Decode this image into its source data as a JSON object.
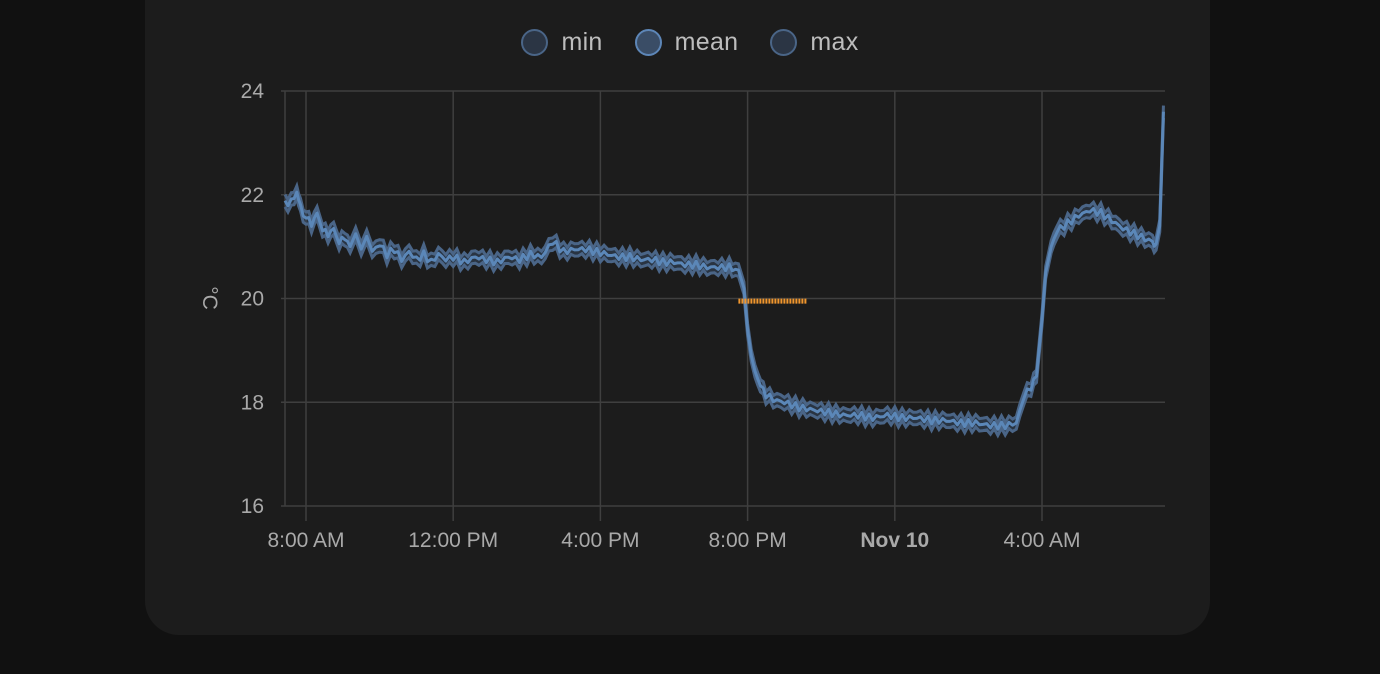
{
  "legend": {
    "items": [
      {
        "label": "min",
        "fill": "#2b3544",
        "stroke": "#4a6587"
      },
      {
        "label": "mean",
        "fill": "#3a4d66",
        "stroke": "#5d86b7"
      },
      {
        "label": "max",
        "fill": "#2b3544",
        "stroke": "#4a6587"
      }
    ]
  },
  "colors": {
    "page_bg": "#111111",
    "card_bg": "#1c1c1c",
    "grid": "#3f3f3f",
    "series_line": "#5b87b8",
    "band": "#3a5270",
    "orange": "#f0962e",
    "text": "#a9a9a9"
  },
  "chart_data": {
    "type": "line",
    "title": "",
    "xlabel": "",
    "ylabel": "°C",
    "ylim": [
      16,
      24
    ],
    "y_ticks": [
      16,
      18,
      20,
      22,
      24
    ],
    "x_unit": "hours since 8:00 AM (Nov 9)",
    "xlim": [
      -0.58,
      23.3
    ],
    "x_ticks": [
      {
        "at": 0,
        "label": "8:00 AM",
        "bold": false
      },
      {
        "at": 4,
        "label": "12:00 PM",
        "bold": false
      },
      {
        "at": 8,
        "label": "4:00 PM",
        "bold": false
      },
      {
        "at": 12,
        "label": "8:00 PM",
        "bold": false
      },
      {
        "at": 16,
        "label": "Nov 10",
        "bold": true
      },
      {
        "at": 20,
        "label": "4:00 AM",
        "bold": false
      }
    ],
    "grid": true,
    "legend_position": "top",
    "series": [
      {
        "name": "mean",
        "x": [
          -0.58,
          -0.4,
          -0.25,
          -0.15,
          0.0,
          0.15,
          0.3,
          0.45,
          0.6,
          0.75,
          0.9,
          1.05,
          1.2,
          1.35,
          1.5,
          1.65,
          1.8,
          2.0,
          2.2,
          2.4,
          2.6,
          2.8,
          3.0,
          3.2,
          3.4,
          3.6,
          3.8,
          4.0,
          4.3,
          4.6,
          4.9,
          5.2,
          5.5,
          5.8,
          6.1,
          6.4,
          6.7,
          7.0,
          7.3,
          7.6,
          7.9,
          8.2,
          8.5,
          8.8,
          9.1,
          9.4,
          9.7,
          10.0,
          10.3,
          10.6,
          10.9,
          11.2,
          11.5,
          11.75,
          11.9,
          12.0,
          12.1,
          12.2,
          12.35,
          12.5,
          12.7,
          13.0,
          13.4,
          13.8,
          14.2,
          14.6,
          15.0,
          15.4,
          15.8,
          16.2,
          16.6,
          17.0,
          17.4,
          17.8,
          18.2,
          18.6,
          19.0,
          19.3,
          19.5,
          19.7,
          19.85,
          20.0,
          20.1,
          20.25,
          20.4,
          20.6,
          20.8,
          21.0,
          21.3,
          21.6,
          21.9,
          22.2,
          22.5,
          22.8,
          23.0,
          23.1,
          23.2,
          23.3
        ],
        "values": [
          21.85,
          21.85,
          22.05,
          21.75,
          21.55,
          21.45,
          21.65,
          21.3,
          21.25,
          21.35,
          21.05,
          21.2,
          21.0,
          21.25,
          20.95,
          21.2,
          20.9,
          21.05,
          20.85,
          20.95,
          20.75,
          20.9,
          20.75,
          20.85,
          20.7,
          20.85,
          20.75,
          20.8,
          20.7,
          20.8,
          20.75,
          20.7,
          20.8,
          20.75,
          20.85,
          20.8,
          21.1,
          20.9,
          20.95,
          20.95,
          20.9,
          20.85,
          20.8,
          20.8,
          20.75,
          20.75,
          20.7,
          20.7,
          20.65,
          20.65,
          20.6,
          20.6,
          20.6,
          20.55,
          20.2,
          19.4,
          18.9,
          18.6,
          18.3,
          18.15,
          18.05,
          18.0,
          17.9,
          17.85,
          17.8,
          17.75,
          17.75,
          17.7,
          17.75,
          17.7,
          17.7,
          17.65,
          17.65,
          17.6,
          17.6,
          17.55,
          17.55,
          17.6,
          18.1,
          18.3,
          18.5,
          19.6,
          20.5,
          21.0,
          21.3,
          21.4,
          21.5,
          21.6,
          21.7,
          21.65,
          21.5,
          21.35,
          21.25,
          21.15,
          21.1,
          21.05,
          21.4,
          23.6
        ]
      }
    ],
    "band": {
      "name": "min-max range",
      "offset": 0.12
    },
    "annotation_series": {
      "name": "orange short series",
      "color": "#f0962e",
      "x": [
        11.75,
        13.6
      ],
      "values": [
        19.95,
        19.95
      ]
    }
  }
}
